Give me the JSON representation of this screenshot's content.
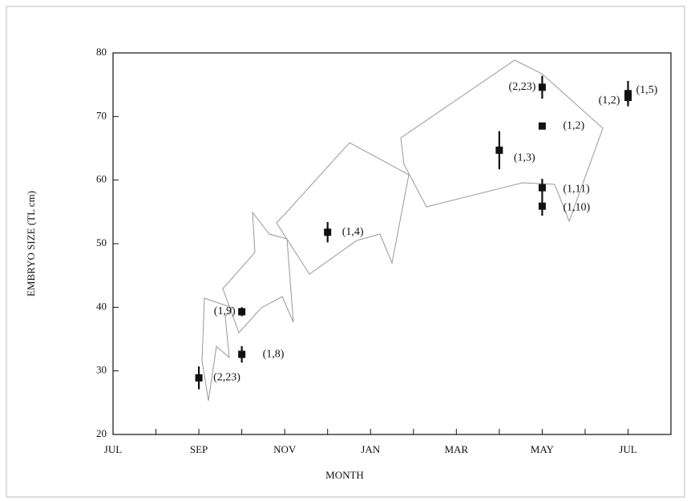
{
  "chart_data": {
    "type": "scatter",
    "xlabel": "MONTH",
    "ylabel": "EMBRYO SIZE (TL cm)",
    "xlim": [
      0,
      13
    ],
    "ylim": [
      20,
      80
    ],
    "xticks": [
      {
        "value": 0,
        "label": "JUL"
      },
      {
        "value": 2,
        "label": "SEP"
      },
      {
        "value": 4,
        "label": "NOV"
      },
      {
        "value": 6,
        "label": "JAN"
      },
      {
        "value": 8,
        "label": "MAR"
      },
      {
        "value": 10,
        "label": "MAY"
      },
      {
        "value": 12,
        "label": "JUL"
      }
    ],
    "xminor_ticks": [
      1,
      3,
      5,
      7,
      9,
      11,
      13
    ],
    "yticks": [
      20,
      30,
      40,
      50,
      60,
      70,
      80
    ],
    "color": "#111111",
    "x": [
      2.0,
      3.0,
      3.0,
      5.0,
      9.0,
      10.0,
      10.0,
      10.0,
      10.0,
      12.0,
      12.0
    ],
    "values": [
      28.9,
      39.3,
      32.6,
      51.8,
      64.7,
      74.6,
      68.5,
      58.8,
      55.9,
      73.6,
      73.0
    ],
    "errors": [
      1.8,
      0.7,
      1.3,
      1.6,
      3.0,
      1.8,
      0.4,
      1.4,
      1.5,
      2.0,
      1.0
    ],
    "point_labels": [
      "(2,23)",
      "(1,9)",
      "(1,8)",
      "(1,4)",
      "(1,3)",
      "(2,23)",
      "(1,2)",
      "(1,11)",
      "(1,10)",
      "(1,5)",
      "(1,2)"
    ]
  }
}
